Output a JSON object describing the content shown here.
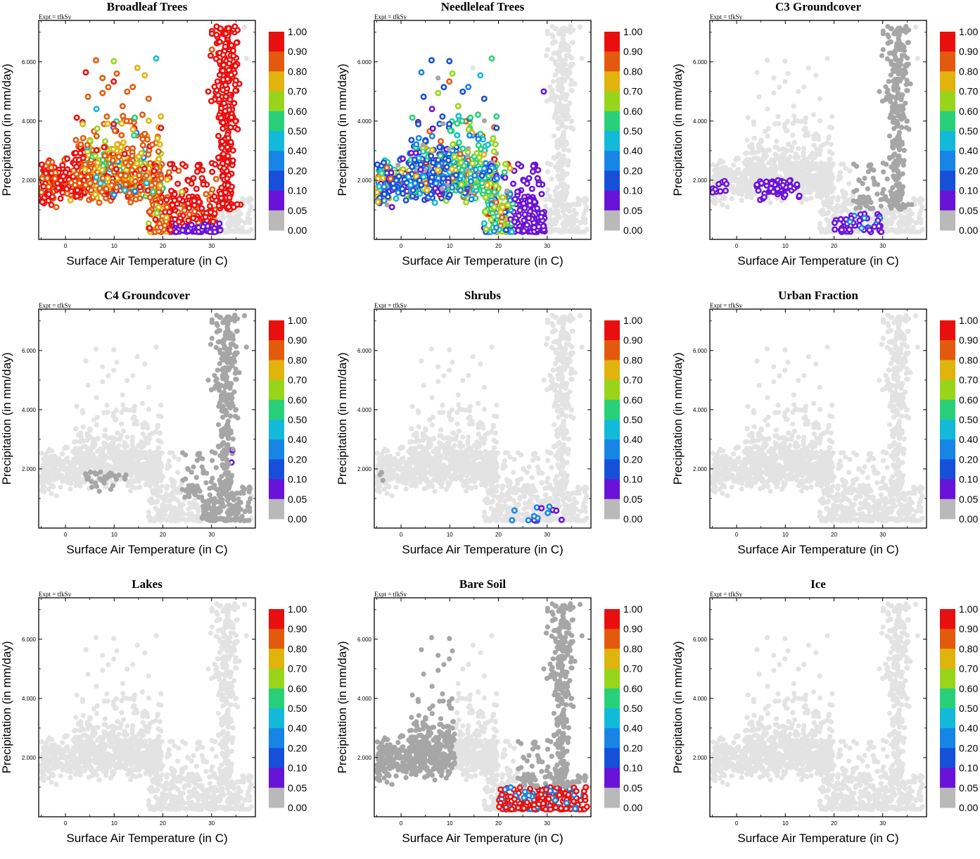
{
  "experiment_label": "Expt = tfkSy",
  "x_axis_label": "Surface Air Temperature (in C)",
  "y_axis_label": "Precipitation (in mm/day)",
  "x_tick_labels": [
    "0",
    "10",
    "20",
    "30"
  ],
  "y_tick_labels": [
    "2.000",
    "4.000",
    "6.000"
  ],
  "colorbar": {
    "labels": [
      "1.00",
      "0.90",
      "0.80",
      "0.70",
      "0.60",
      "0.50",
      "0.40",
      "0.20",
      "0.10",
      "0.05",
      "0.00"
    ],
    "colors": [
      "#e8100f",
      "#e35a0e",
      "#e0b30d",
      "#98d51a",
      "#28d07a",
      "#13b9d9",
      "#1785e6",
      "#1650d8",
      "#6a13d8",
      "#b9b9b9"
    ]
  },
  "colors": {
    "background_dot": "#e3e3e3",
    "nonzero_gray": "#a6a6a6"
  },
  "chart_data": [
    {
      "type": "scatter",
      "title": "Broadleaf Trees",
      "pft": "broadleaf",
      "xlabel": "Surface Air Temperature (in C)",
      "ylabel": "Precipitation (in mm/day)",
      "xlim": [
        -5.5,
        39
      ],
      "ylim": [
        0,
        7.4
      ]
    },
    {
      "type": "scatter",
      "title": "Needleleaf Trees",
      "pft": "needleleaf",
      "xlabel": "Surface Air Temperature (in C)",
      "ylabel": "Precipitation (in mm/day)",
      "xlim": [
        -5.5,
        39
      ],
      "ylim": [
        0,
        7.4
      ]
    },
    {
      "type": "scatter",
      "title": "C3 Groundcover",
      "pft": "c3",
      "xlabel": "Surface Air Temperature (in C)",
      "ylabel": "Precipitation (in mm/day)",
      "xlim": [
        -5.5,
        39
      ],
      "ylim": [
        0,
        7.4
      ]
    },
    {
      "type": "scatter",
      "title": "C4 Groundcover",
      "pft": "c4",
      "xlabel": "Surface Air Temperature (in C)",
      "ylabel": "Precipitation (in mm/day)",
      "xlim": [
        -5.5,
        39
      ],
      "ylim": [
        0,
        7.4
      ]
    },
    {
      "type": "scatter",
      "title": "Shrubs",
      "pft": "shrubs",
      "xlabel": "Surface Air Temperature (in C)",
      "ylabel": "Precipitation (in mm/day)",
      "xlim": [
        -5.5,
        39
      ],
      "ylim": [
        0,
        7.4
      ]
    },
    {
      "type": "scatter",
      "title": "Urban Fraction",
      "pft": "urban",
      "xlabel": "Surface Air Temperature (in C)",
      "ylabel": "Precipitation (in mm/day)",
      "xlim": [
        -5.5,
        39
      ],
      "ylim": [
        0,
        7.4
      ]
    },
    {
      "type": "scatter",
      "title": "Lakes",
      "pft": "lakes",
      "xlabel": "Surface Air Temperature (in C)",
      "ylabel": "Precipitation (in mm/day)",
      "xlim": [
        -5.5,
        39
      ],
      "ylim": [
        0,
        7.4
      ]
    },
    {
      "type": "scatter",
      "title": "Bare Soil",
      "pft": "bare",
      "xlabel": "Surface Air Temperature (in C)",
      "ylabel": "Precipitation (in mm/day)",
      "xlim": [
        -5.5,
        39
      ],
      "ylim": [
        0,
        7.4
      ]
    },
    {
      "type": "scatter",
      "title": "Ice",
      "pft": "ice",
      "xlabel": "Surface Air Temperature (in C)",
      "ylabel": "Precipitation (in mm/day)",
      "xlim": [
        -5.5,
        39
      ],
      "ylim": [
        0,
        7.4
      ]
    }
  ]
}
